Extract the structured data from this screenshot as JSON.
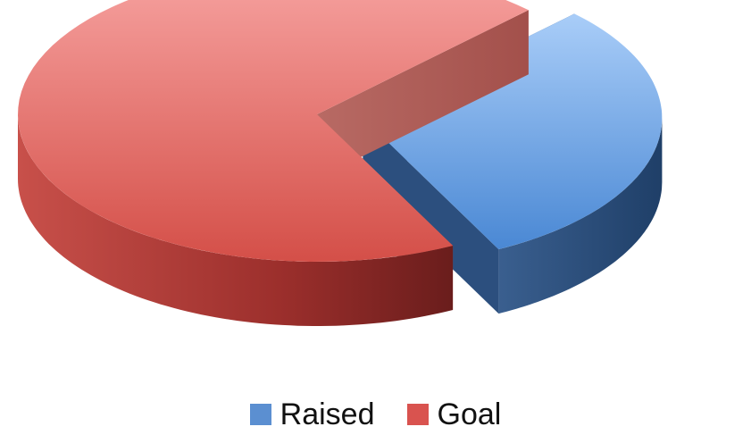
{
  "chart_data": {
    "type": "pie",
    "style": "3d-exploded",
    "series": [
      {
        "name": "Raised",
        "value": 30,
        "color": "#5b8fd1"
      },
      {
        "name": "Goal",
        "value": 70,
        "color": "#d9534f"
      }
    ],
    "legend_position": "bottom"
  }
}
